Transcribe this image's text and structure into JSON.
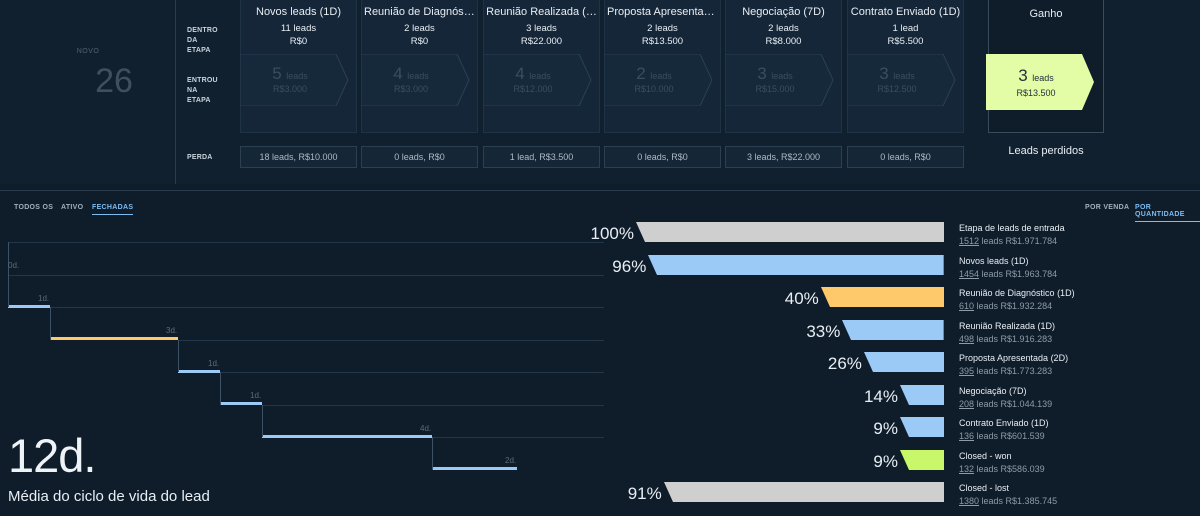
{
  "novo": {
    "label": "NOVO",
    "count": "26"
  },
  "row_labels": {
    "dentro": [
      "DENTRO",
      "DA",
      "ETAPA"
    ],
    "entrou": [
      "ENTROU",
      "NA",
      "ETAPA"
    ],
    "perda": "PERDA"
  },
  "stages": [
    {
      "name": "Novos leads (1D)",
      "count": "11 leads",
      "value": "R$0",
      "entered_n": "5",
      "entered_unit": "leads",
      "entered_value": "R$3.000",
      "loss": "18 leads, R$10.000"
    },
    {
      "name": "Reunião de Diagnóst…",
      "count": "2 leads",
      "value": "R$0",
      "entered_n": "4",
      "entered_unit": "leads",
      "entered_value": "R$3.000",
      "loss": "0 leads, R$0"
    },
    {
      "name": "Reunião Realizada (…",
      "count": "3 leads",
      "value": "R$22.000",
      "entered_n": "4",
      "entered_unit": "leads",
      "entered_value": "R$12.000",
      "loss": "1 lead, R$3.500"
    },
    {
      "name": "Proposta Apresentad…",
      "count": "2 leads",
      "value": "R$13.500",
      "entered_n": "2",
      "entered_unit": "leads",
      "entered_value": "R$10.000",
      "loss": "0 leads, R$0"
    },
    {
      "name": "Negociação (7D)",
      "count": "2 leads",
      "value": "R$8.000",
      "entered_n": "3",
      "entered_unit": "leads",
      "entered_value": "R$15.000",
      "loss": "3 leads, R$22.000"
    },
    {
      "name": "Contrato Enviado (1D)",
      "count": "1 lead",
      "value": "R$5.500",
      "entered_n": "3",
      "entered_unit": "leads",
      "entered_value": "R$12.500",
      "loss": "0 leads, R$0"
    }
  ],
  "ganho": {
    "title": "Ganho",
    "n": "3",
    "unit": "leads",
    "value": "R$13.500",
    "color": "#e3fca6"
  },
  "lost_title": "Leads perdidos",
  "tabs_left": [
    {
      "label": "TODOS OS",
      "active": false
    },
    {
      "label": "ATIVO",
      "active": false
    },
    {
      "label": "FECHADAS",
      "active": true
    }
  ],
  "tabs_right": [
    {
      "label": "POR VENDA",
      "active": false
    },
    {
      "label": "POR QUANTIDADE",
      "active": true
    }
  ],
  "timeline": [
    {
      "label": "0d.",
      "color": "#3d5266"
    },
    {
      "label": "1d.",
      "color": "#9ccaf7"
    },
    {
      "label": "3d.",
      "color": "#fdc96b"
    },
    {
      "label": "1d.",
      "color": "#9ccaf7"
    },
    {
      "label": "1d.",
      "color": "#9ccaf7"
    },
    {
      "label": "4d.",
      "color": "#9ccaf7"
    },
    {
      "label": "2d.",
      "color": "#9ccaf7"
    }
  ],
  "funnel": [
    {
      "pct_label": "100%",
      "pct": 100,
      "name": "Etapa de leads de entrada",
      "leads": "1512",
      "leads_suffix": " leads R$1.971.784",
      "color": "#cfcfcf"
    },
    {
      "pct_label": "96%",
      "pct": 96,
      "name": "Novos leads (1D)",
      "leads": "1454",
      "leads_suffix": " leads R$1.963.784",
      "color": "#9ccaf7"
    },
    {
      "pct_label": "40%",
      "pct": 40,
      "name": "Reunião de Diagnóstico (1D)",
      "leads": "610",
      "leads_suffix": " leads R$1.932.284",
      "color": "#fdc96b"
    },
    {
      "pct_label": "33%",
      "pct": 33,
      "name": "Reunião Realizada (1D)",
      "leads": "498",
      "leads_suffix": " leads R$1.916.283",
      "color": "#9ccaf7"
    },
    {
      "pct_label": "26%",
      "pct": 26,
      "name": "Proposta Apresentada (2D)",
      "leads": "395",
      "leads_suffix": " leads R$1.773.283",
      "color": "#9ccaf7"
    },
    {
      "pct_label": "14%",
      "pct": 14,
      "name": "Negociação (7D)",
      "leads": "208",
      "leads_suffix": " leads R$1.044.139",
      "color": "#9ccaf7"
    },
    {
      "pct_label": "9%",
      "pct": 9,
      "name": "Contrato Enviado (1D)",
      "leads": "136",
      "leads_suffix": " leads R$601.539",
      "color": "#9ccaf7"
    },
    {
      "pct_label": "9%",
      "pct": 9,
      "name": "Closed - won",
      "leads": "132",
      "leads_suffix": " leads R$586.039",
      "color": "#c9f76a"
    },
    {
      "pct_label": "91%",
      "pct": 91,
      "name": "Closed - lost",
      "leads": "1380",
      "leads_suffix": " leads R$1.385.745",
      "color": "#cfcfcf"
    }
  ],
  "average": {
    "value": "12d.",
    "label": "Média do ciclo de vida do lead"
  }
}
